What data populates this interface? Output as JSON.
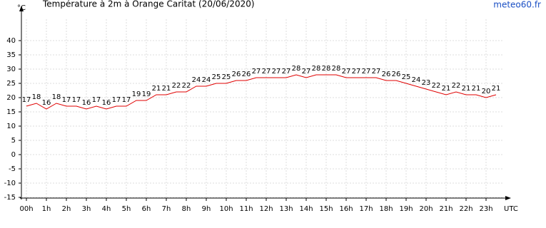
{
  "chart_data": {
    "type": "line",
    "title": "Température à 2m à Orange Caritat (20/06/2020)",
    "y_unit": "°C",
    "x_unit": "UTC",
    "source": "meteo60.fr",
    "categories": [
      "00h",
      null,
      "1h",
      null,
      "2h",
      null,
      "3h",
      null,
      "4h",
      null,
      "5h",
      null,
      "6h",
      null,
      "7h",
      null,
      "8h",
      null,
      "9h",
      null,
      "10h",
      null,
      "11h",
      null,
      "12h",
      null,
      "13h",
      null,
      "14h",
      null,
      "15h",
      null,
      "16h",
      null,
      "17h",
      null,
      "18h",
      null,
      "19h",
      null,
      "20h",
      null,
      "21h",
      null,
      "22h",
      null,
      "23h",
      null
    ],
    "series": [
      {
        "name": "Température",
        "color": "#e00000",
        "values": [
          17,
          18,
          16,
          18,
          17,
          17,
          16,
          17,
          16,
          17,
          17,
          19,
          19,
          21,
          21,
          22,
          22,
          24,
          24,
          25,
          25,
          26,
          26,
          27,
          27,
          27,
          27,
          28,
          27,
          28,
          28,
          28,
          27,
          27,
          27,
          27,
          26,
          26,
          25,
          24,
          23,
          22,
          21,
          22,
          21,
          21,
          20,
          21
        ]
      }
    ],
    "ylim": [
      -15,
      50
    ],
    "yticks": [
      -15,
      -10,
      -5,
      0,
      5,
      10,
      15,
      20,
      25,
      30,
      35,
      40
    ],
    "grid": true
  }
}
